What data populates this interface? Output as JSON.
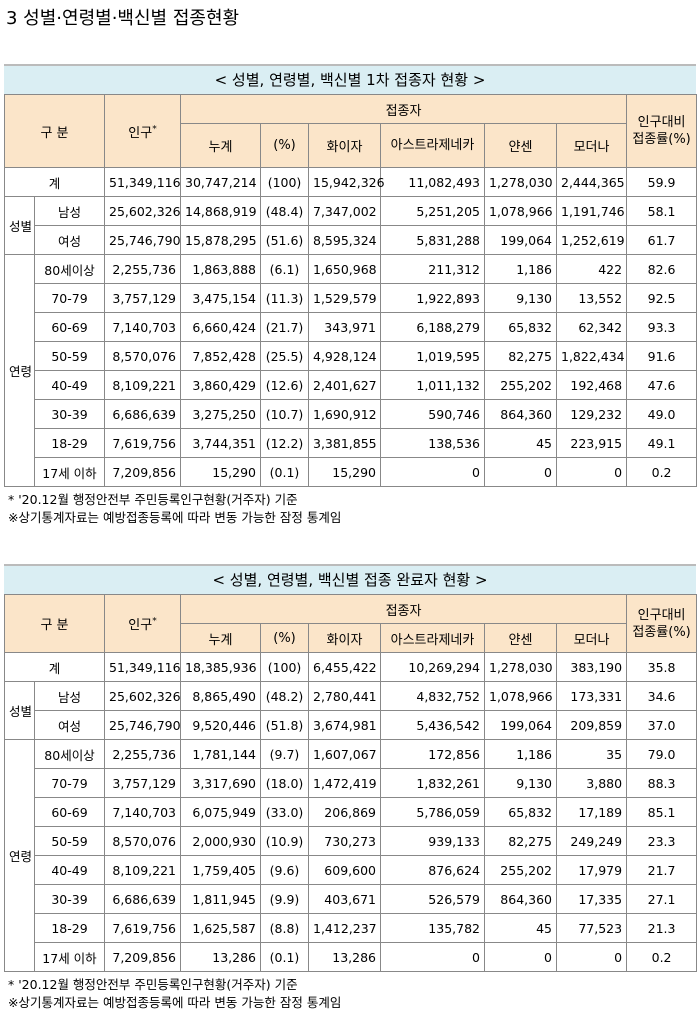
{
  "page_title": "3  성별·연령별·백신별 접종현황",
  "headers": {
    "category": "구 분",
    "population": "인구",
    "population_mark": "*",
    "vaccinated": "접종자",
    "total": "누계",
    "percent": "(%)",
    "pfizer": "화이자",
    "astrazeneca_t1": "아스트라제네카",
    "astrazeneca_t2": "아스트라제네카",
    "janssen": "얀센",
    "moderna": "모더나",
    "rate": "인구대비 접종률(%)"
  },
  "group_labels": {
    "gender": "성별",
    "age": "연령"
  },
  "tables": [
    {
      "caption": "< 성별, 연령별, 백신별 1차 접종자 현황 >",
      "rows": [
        {
          "label": "계",
          "population": "51,349,116",
          "total": "30,747,214",
          "percent": "(100)",
          "pfizer": "15,942,326",
          "az": "11,082,493",
          "janssen": "1,278,030",
          "moderna": "2,444,365",
          "rate": "59.9"
        },
        {
          "label": "남성",
          "population": "25,602,326",
          "total": "14,868,919",
          "percent": "(48.4)",
          "pfizer": "7,347,002",
          "az": "5,251,205",
          "janssen": "1,078,966",
          "moderna": "1,191,746",
          "rate": "58.1"
        },
        {
          "label": "여성",
          "population": "25,746,790",
          "total": "15,878,295",
          "percent": "(51.6)",
          "pfizer": "8,595,324",
          "az": "5,831,288",
          "janssen": "199,064",
          "moderna": "1,252,619",
          "rate": "61.7"
        },
        {
          "label": "80세이상",
          "population": "2,255,736",
          "total": "1,863,888",
          "percent": "(6.1)",
          "pfizer": "1,650,968",
          "az": "211,312",
          "janssen": "1,186",
          "moderna": "422",
          "rate": "82.6"
        },
        {
          "label": "70-79",
          "population": "3,757,129",
          "total": "3,475,154",
          "percent": "(11.3)",
          "pfizer": "1,529,579",
          "az": "1,922,893",
          "janssen": "9,130",
          "moderna": "13,552",
          "rate": "92.5"
        },
        {
          "label": "60-69",
          "population": "7,140,703",
          "total": "6,660,424",
          "percent": "(21.7)",
          "pfizer": "343,971",
          "az": "6,188,279",
          "janssen": "65,832",
          "moderna": "62,342",
          "rate": "93.3"
        },
        {
          "label": "50-59",
          "population": "8,570,076",
          "total": "7,852,428",
          "percent": "(25.5)",
          "pfizer": "4,928,124",
          "az": "1,019,595",
          "janssen": "82,275",
          "moderna": "1,822,434",
          "rate": "91.6"
        },
        {
          "label": "40-49",
          "population": "8,109,221",
          "total": "3,860,429",
          "percent": "(12.6)",
          "pfizer": "2,401,627",
          "az": "1,011,132",
          "janssen": "255,202",
          "moderna": "192,468",
          "rate": "47.6"
        },
        {
          "label": "30-39",
          "population": "6,686,639",
          "total": "3,275,250",
          "percent": "(10.7)",
          "pfizer": "1,690,912",
          "az": "590,746",
          "janssen": "864,360",
          "moderna": "129,232",
          "rate": "49.0"
        },
        {
          "label": "18-29",
          "population": "7,619,756",
          "total": "3,744,351",
          "percent": "(12.2)",
          "pfizer": "3,381,855",
          "az": "138,536",
          "janssen": "45",
          "moderna": "223,915",
          "rate": "49.1"
        },
        {
          "label": "17세 이하",
          "population": "7,209,856",
          "total": "15,290",
          "percent": "(0.1)",
          "pfizer": "15,290",
          "az": "0",
          "janssen": "0",
          "moderna": "0",
          "rate": "0.2"
        }
      ],
      "note1": "* '20.12월 행정안전부 주민등록인구현황(거주자) 기준",
      "note2": "※상기통계자료는 예방접종등록에 따라 변동 가능한 잠정 통계임"
    },
    {
      "caption": "< 성별, 연령별, 백신별 접종 완료자 현황 >",
      "rows": [
        {
          "label": "계",
          "population": "51,349,116",
          "total": "18,385,936",
          "percent": "(100)",
          "pfizer": "6,455,422",
          "az": "10,269,294",
          "janssen": "1,278,030",
          "moderna": "383,190",
          "rate": "35.8"
        },
        {
          "label": "남성",
          "population": "25,602,326",
          "total": "8,865,490",
          "percent": "(48.2)",
          "pfizer": "2,780,441",
          "az": "4,832,752",
          "janssen": "1,078,966",
          "moderna": "173,331",
          "rate": "34.6"
        },
        {
          "label": "여성",
          "population": "25,746,790",
          "total": "9,520,446",
          "percent": "(51.8)",
          "pfizer": "3,674,981",
          "az": "5,436,542",
          "janssen": "199,064",
          "moderna": "209,859",
          "rate": "37.0"
        },
        {
          "label": "80세이상",
          "population": "2,255,736",
          "total": "1,781,144",
          "percent": "(9.7)",
          "pfizer": "1,607,067",
          "az": "172,856",
          "janssen": "1,186",
          "moderna": "35",
          "rate": "79.0"
        },
        {
          "label": "70-79",
          "population": "3,757,129",
          "total": "3,317,690",
          "percent": "(18.0)",
          "pfizer": "1,472,419",
          "az": "1,832,261",
          "janssen": "9,130",
          "moderna": "3,880",
          "rate": "88.3"
        },
        {
          "label": "60-69",
          "population": "7,140,703",
          "total": "6,075,949",
          "percent": "(33.0)",
          "pfizer": "206,869",
          "az": "5,786,059",
          "janssen": "65,832",
          "moderna": "17,189",
          "rate": "85.1"
        },
        {
          "label": "50-59",
          "population": "8,570,076",
          "total": "2,000,930",
          "percent": "(10.9)",
          "pfizer": "730,273",
          "az": "939,133",
          "janssen": "82,275",
          "moderna": "249,249",
          "rate": "23.3"
        },
        {
          "label": "40-49",
          "population": "8,109,221",
          "total": "1,759,405",
          "percent": "(9.6)",
          "pfizer": "609,600",
          "az": "876,624",
          "janssen": "255,202",
          "moderna": "17,979",
          "rate": "21.7"
        },
        {
          "label": "30-39",
          "population": "6,686,639",
          "total": "1,811,945",
          "percent": "(9.9)",
          "pfizer": "403,671",
          "az": "526,579",
          "janssen": "864,360",
          "moderna": "17,335",
          "rate": "27.1"
        },
        {
          "label": "18-29",
          "population": "7,619,756",
          "total": "1,625,587",
          "percent": "(8.8)",
          "pfizer": "1,412,237",
          "az": "135,782",
          "janssen": "45",
          "moderna": "77,523",
          "rate": "21.3"
        },
        {
          "label": "17세 이하",
          "population": "7,209,856",
          "total": "13,286",
          "percent": "(0.1)",
          "pfizer": "13,286",
          "az": "0",
          "janssen": "0",
          "moderna": "0",
          "rate": "0.2"
        }
      ],
      "note1": "* '20.12월 행정안전부 주민등록인구현황(거주자) 기준",
      "note2": "※상기통계자료는 예방접종등록에 따라 변동 가능한 잠정 통계임"
    }
  ]
}
